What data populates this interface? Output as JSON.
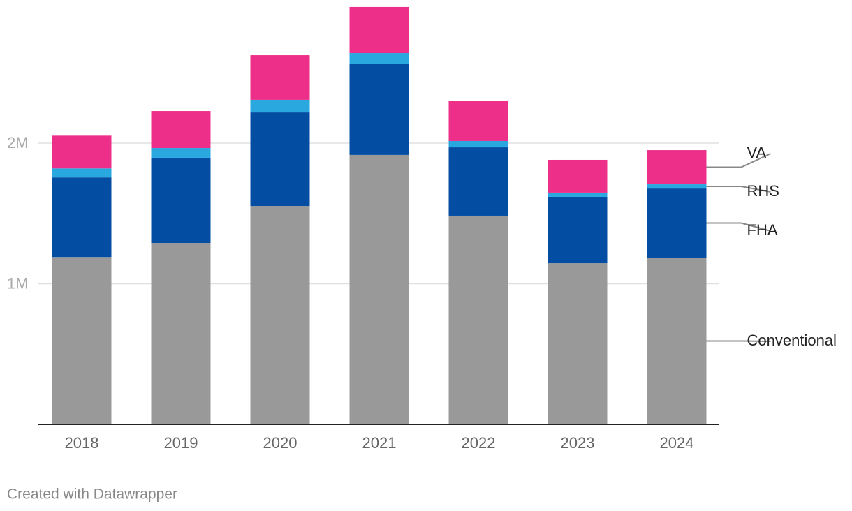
{
  "chart_data": {
    "type": "stacked_bar",
    "categories": [
      "2018",
      "2019",
      "2020",
      "2021",
      "2022",
      "2023",
      "2024"
    ],
    "series": [
      {
        "name": "Conventional",
        "color": "#999999",
        "values": [
          1190000,
          1290000,
          1553000,
          1916000,
          1484000,
          1146000,
          1186000
        ]
      },
      {
        "name": "FHA",
        "color": "#034ea2",
        "values": [
          566000,
          606000,
          665000,
          645000,
          486000,
          472000,
          491000
        ]
      },
      {
        "name": "RHS",
        "color": "#29a8e0",
        "values": [
          64000,
          69000,
          90000,
          79000,
          45000,
          30000,
          30000
        ]
      },
      {
        "name": "VA",
        "color": "#ed2f8a",
        "values": [
          233000,
          263000,
          317000,
          328000,
          283000,
          233000,
          243000
        ]
      }
    ],
    "ylim": [
      0,
      3000000
    ],
    "yticks": [
      {
        "value": 1000000,
        "label": "1M"
      },
      {
        "value": 2000000,
        "label": "2M"
      }
    ],
    "grid": true,
    "legend": "right",
    "credit": "Created with Datawrapper"
  }
}
